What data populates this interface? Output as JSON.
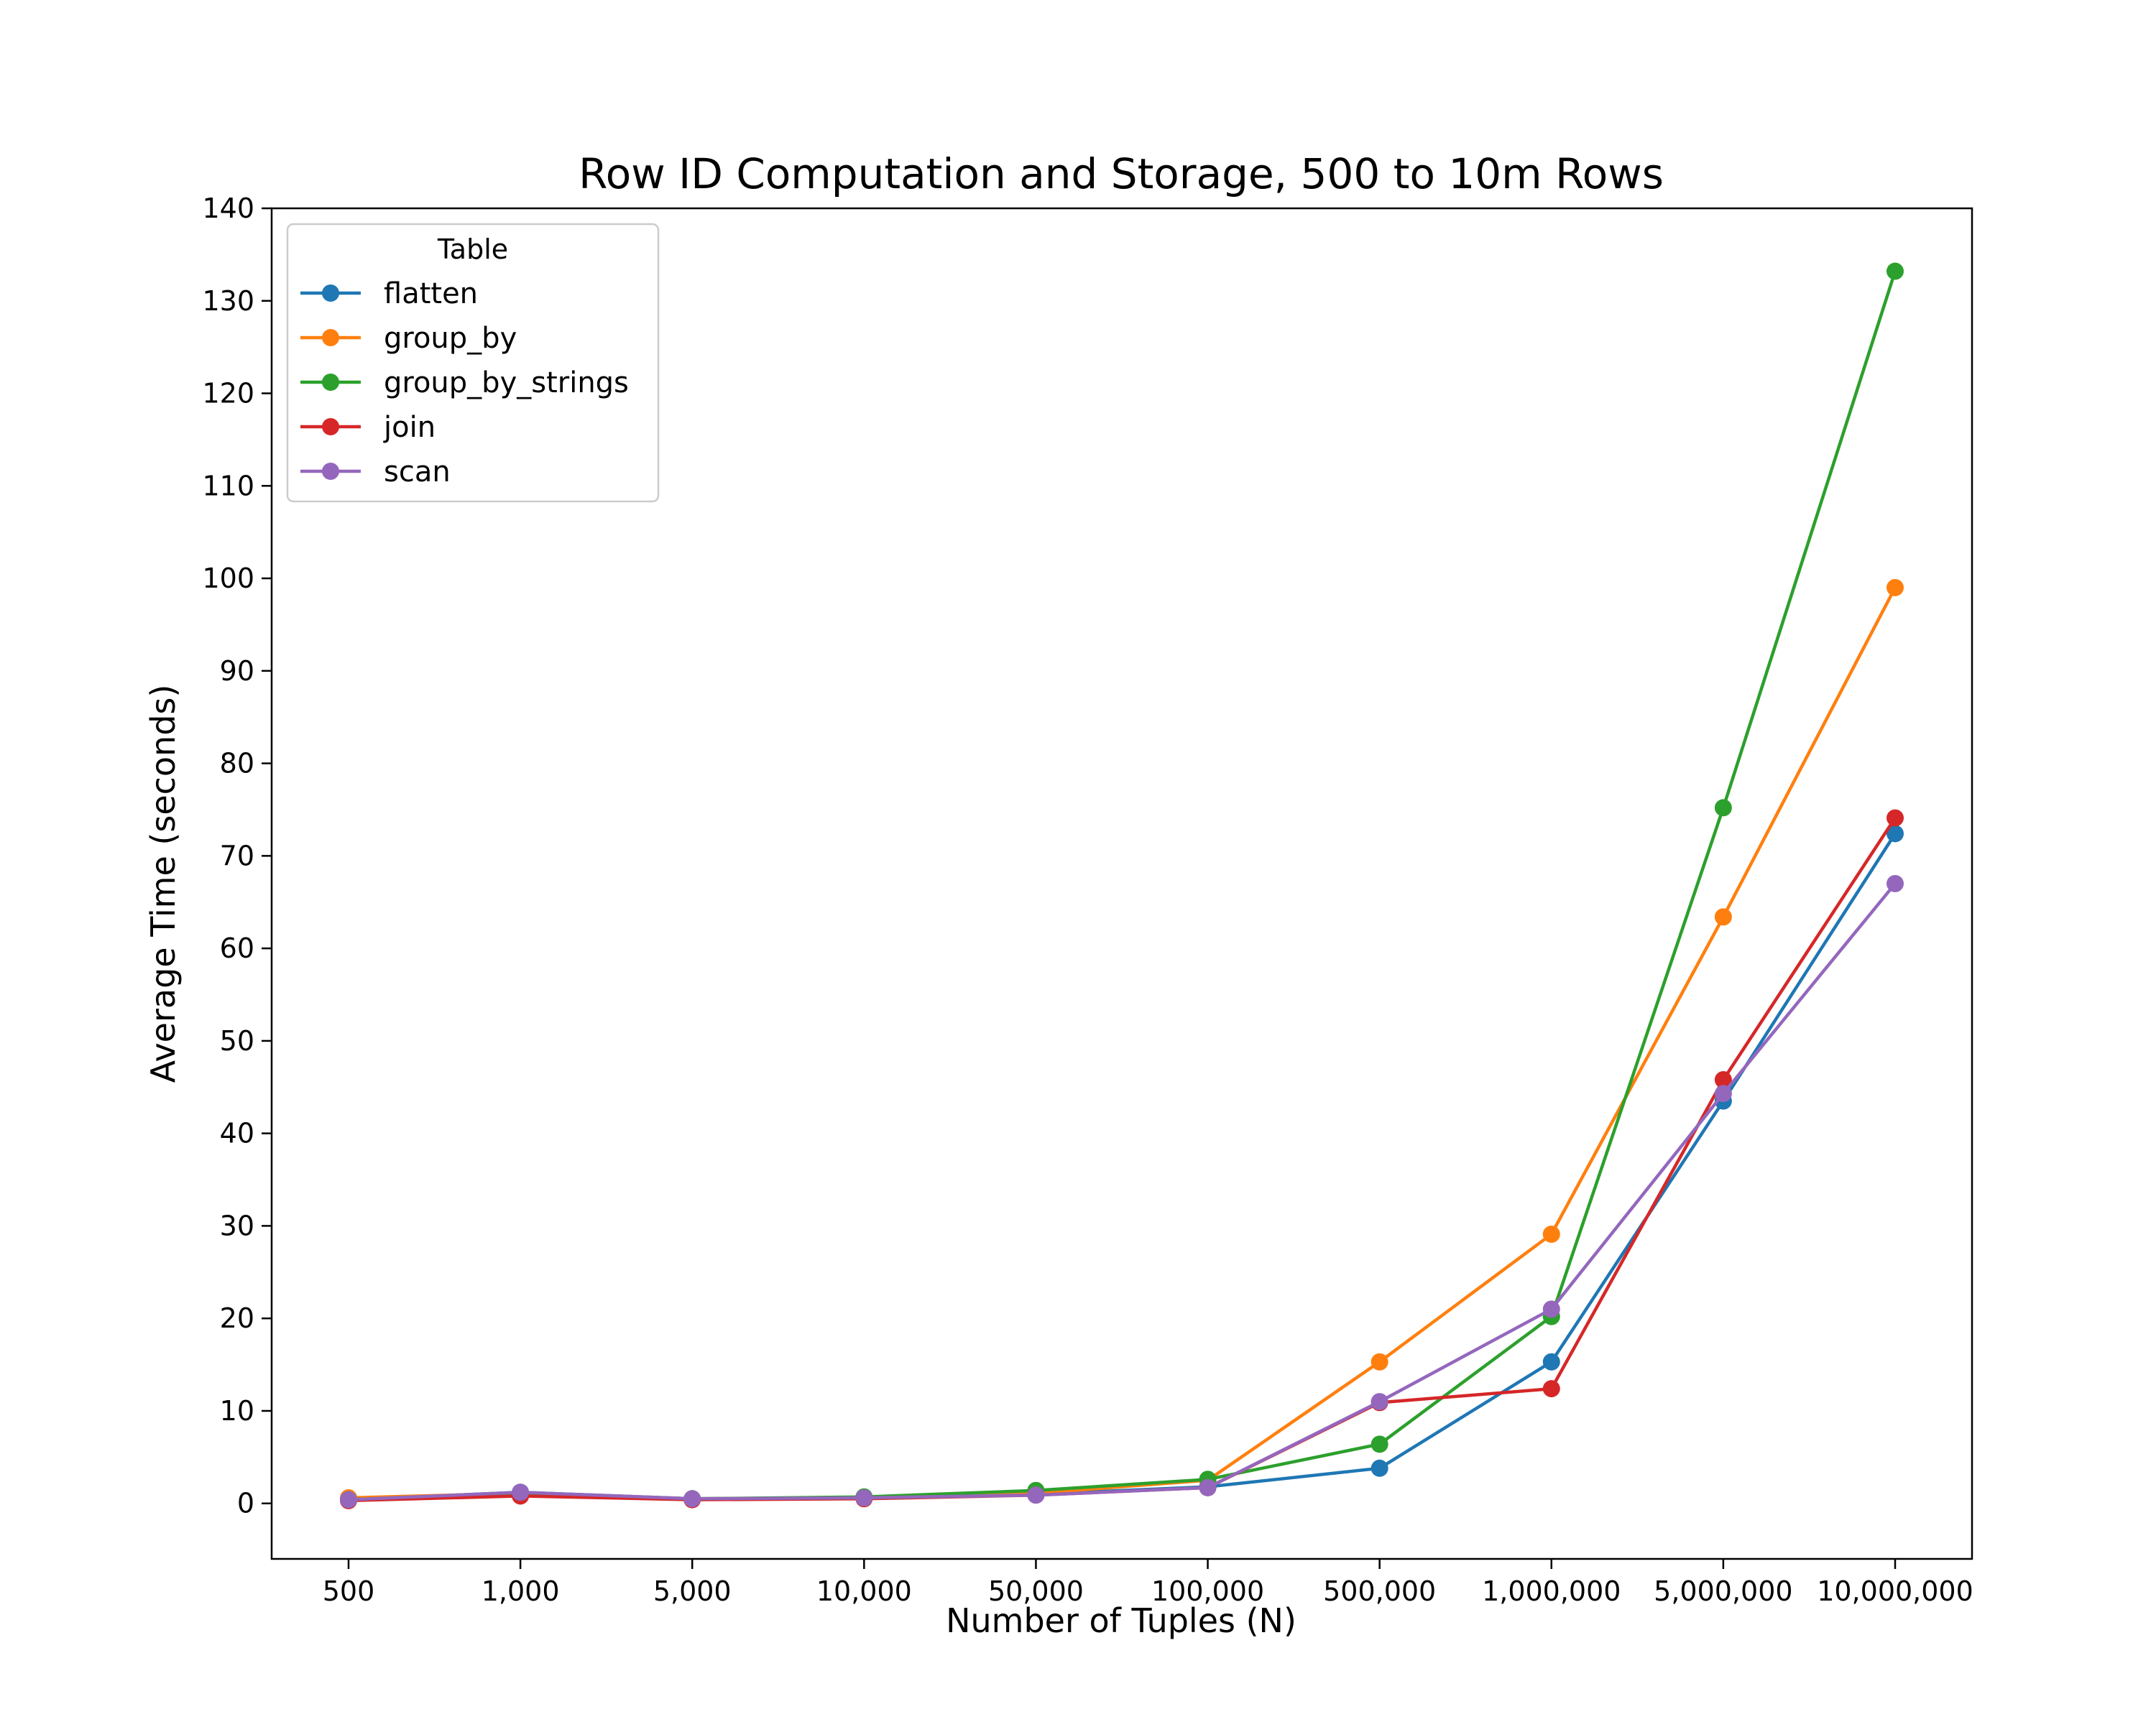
{
  "chart_data": {
    "type": "line",
    "title": "Row ID Computation and Storage, 500 to 10m Rows",
    "xlabel": "Number of Tuples (N)",
    "ylabel": "Average Time (seconds)",
    "categories": [
      "500",
      "1,000",
      "5,000",
      "10,000",
      "50,000",
      "100,000",
      "500,000",
      "1,000,000",
      "5,000,000",
      "10,000,000"
    ],
    "ylim": [
      -6,
      140
    ],
    "yticks": [
      0,
      10,
      20,
      30,
      40,
      50,
      60,
      70,
      80,
      90,
      100,
      110,
      120,
      130,
      140
    ],
    "grid": false,
    "legend": {
      "title": "Table",
      "position": "top-left"
    },
    "series": [
      {
        "name": "flatten",
        "color": "#1f77b4",
        "values": [
          0.4,
          1.2,
          0.5,
          0.6,
          1.0,
          1.8,
          3.8,
          15.3,
          43.5,
          72.4
        ]
      },
      {
        "name": "group_by",
        "color": "#ff7f0e",
        "values": [
          0.6,
          1.1,
          0.5,
          0.6,
          1.1,
          2.5,
          15.3,
          29.1,
          63.4,
          99.0
        ]
      },
      {
        "name": "group_by_strings",
        "color": "#2ca02c",
        "values": [
          0.4,
          1.1,
          0.5,
          0.7,
          1.4,
          2.6,
          6.4,
          20.2,
          75.2,
          133.2
        ]
      },
      {
        "name": "join",
        "color": "#d62728",
        "values": [
          0.3,
          0.8,
          0.4,
          0.5,
          0.9,
          1.7,
          10.9,
          12.4,
          45.8,
          74.1
        ]
      },
      {
        "name": "scan",
        "color": "#9467bd",
        "values": [
          0.4,
          1.2,
          0.5,
          0.6,
          0.9,
          1.7,
          11.0,
          21.0,
          44.3,
          67.0
        ]
      }
    ]
  }
}
